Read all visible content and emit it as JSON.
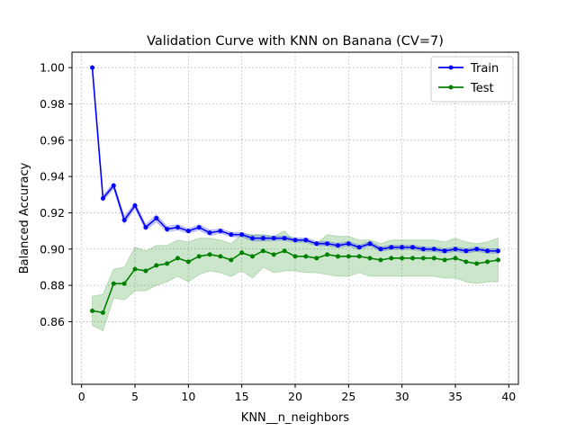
{
  "chart_data": {
    "type": "line",
    "title": "Validation Curve with KNN on Banana (CV=7)",
    "xlabel": "KNN__n_neighbors",
    "ylabel": "Balanced Accuracy",
    "xlim": [
      -0.9,
      40.9
    ],
    "ylim": [
      0.8255,
      1.0085
    ],
    "xticks": [
      0,
      5,
      10,
      15,
      20,
      25,
      30,
      35,
      40
    ],
    "yticks": [
      0.86,
      0.88,
      0.9,
      0.92,
      0.94,
      0.96,
      0.98,
      1.0
    ],
    "xtick_labels": [
      "0",
      "5",
      "10",
      "15",
      "20",
      "25",
      "30",
      "35",
      "40"
    ],
    "ytick_labels": [
      "0.86",
      "0.88",
      "0.90",
      "0.92",
      "0.94",
      "0.96",
      "0.98",
      "1.00"
    ],
    "grid": true,
    "legend_position": "upper right",
    "x": [
      1,
      2,
      3,
      4,
      5,
      6,
      7,
      8,
      9,
      10,
      11,
      12,
      13,
      14,
      15,
      16,
      17,
      18,
      19,
      20,
      21,
      22,
      23,
      24,
      25,
      26,
      27,
      28,
      29,
      30,
      31,
      32,
      33,
      34,
      35,
      36,
      37,
      38,
      39
    ],
    "series": [
      {
        "name": "Train",
        "color": "#0000ff",
        "band_color": "#0000ff",
        "band_opacity": 0.2,
        "values": [
          1.0,
          0.928,
          0.935,
          0.916,
          0.924,
          0.912,
          0.917,
          0.911,
          0.912,
          0.91,
          0.912,
          0.909,
          0.91,
          0.908,
          0.908,
          0.906,
          0.906,
          0.906,
          0.906,
          0.905,
          0.905,
          0.903,
          0.903,
          0.902,
          0.903,
          0.901,
          0.903,
          0.9,
          0.901,
          0.901,
          0.901,
          0.9,
          0.9,
          0.899,
          0.9,
          0.899,
          0.9,
          0.899,
          0.899
        ],
        "std": [
          0.0005,
          0.0015,
          0.0015,
          0.002,
          0.0015,
          0.0015,
          0.002,
          0.0015,
          0.0015,
          0.0012,
          0.0015,
          0.0015,
          0.0012,
          0.0012,
          0.0012,
          0.0015,
          0.0015,
          0.0012,
          0.0012,
          0.0012,
          0.0012,
          0.0012,
          0.0012,
          0.0012,
          0.0012,
          0.0012,
          0.0012,
          0.0012,
          0.0012,
          0.0012,
          0.0012,
          0.0012,
          0.0012,
          0.0012,
          0.0012,
          0.0012,
          0.0012,
          0.0012,
          0.0012
        ]
      },
      {
        "name": "Test",
        "color": "#008000",
        "band_color": "#008000",
        "band_opacity": 0.2,
        "values": [
          0.866,
          0.865,
          0.881,
          0.881,
          0.889,
          0.888,
          0.891,
          0.892,
          0.895,
          0.893,
          0.896,
          0.897,
          0.896,
          0.894,
          0.898,
          0.896,
          0.899,
          0.897,
          0.899,
          0.896,
          0.896,
          0.895,
          0.897,
          0.896,
          0.896,
          0.896,
          0.895,
          0.894,
          0.895,
          0.895,
          0.895,
          0.895,
          0.895,
          0.894,
          0.895,
          0.893,
          0.892,
          0.893,
          0.894
        ],
        "std": [
          0.008,
          0.01,
          0.008,
          0.009,
          0.012,
          0.011,
          0.011,
          0.01,
          0.01,
          0.011,
          0.01,
          0.009,
          0.009,
          0.009,
          0.01,
          0.012,
          0.009,
          0.01,
          0.011,
          0.008,
          0.009,
          0.008,
          0.011,
          0.011,
          0.011,
          0.009,
          0.01,
          0.009,
          0.01,
          0.01,
          0.01,
          0.01,
          0.01,
          0.01,
          0.011,
          0.011,
          0.011,
          0.011,
          0.012
        ]
      }
    ]
  }
}
